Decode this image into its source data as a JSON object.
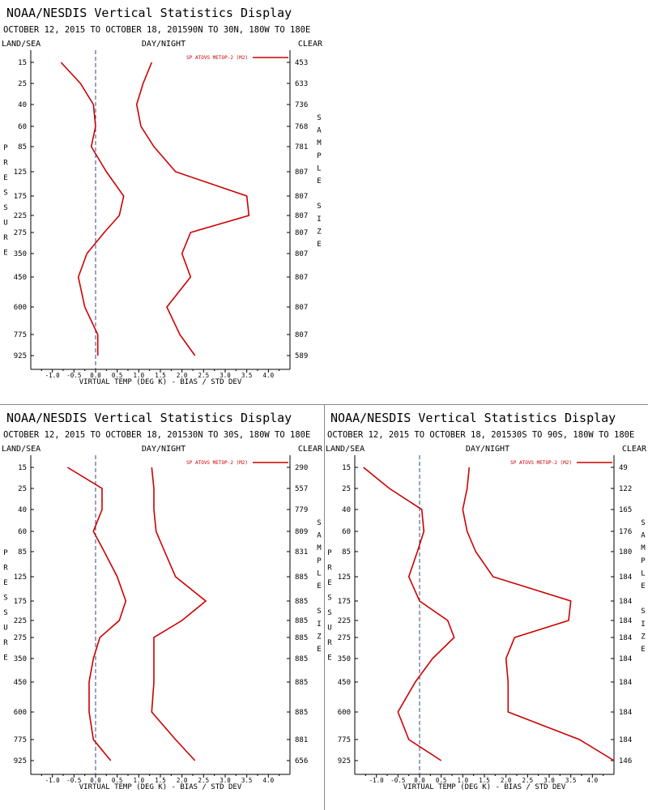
{
  "chart_data": [
    {
      "type": "line",
      "title": "NOAA/NESDIS Vertical Statistics Display",
      "subtitle": "OCTOBER 12, 2015 TO OCTOBER 18, 201590N TO 30N, 180W TO 180E",
      "top_left_label": "LAND/SEA",
      "top_center_label": "DAY/NIGHT",
      "top_right_label": "CLEAR",
      "left_axis_label": "PRESSURE",
      "right_axis_label": "SAMPLE SIZE",
      "xlabel": "VIRTUAL TEMP (DEG K) - BIAS / STD DEV",
      "xlim": [
        -1.5,
        4.5
      ],
      "xticks": [
        "-1.0",
        "-0.5",
        "0.0",
        "0.5",
        "1.0",
        "1.5",
        "2.0",
        "2.5",
        "3.0",
        "3.5",
        "4.0"
      ],
      "y": [
        "15",
        "25",
        "40",
        "60",
        "85",
        "125",
        "175",
        "225",
        "275",
        "350",
        "450",
        "600",
        "775",
        "925"
      ],
      "legend": "SP ATOVS METOP-2 (M2)",
      "sample_size": [
        "453",
        "633",
        "736",
        "768",
        "781",
        "807",
        "807",
        "807",
        "807",
        "807",
        "807",
        "807",
        "807",
        "589"
      ],
      "series": [
        {
          "values": [
            -0.8,
            -0.35,
            -0.05,
            0.0,
            -0.1,
            0.25,
            0.65,
            0.55,
            0.2,
            -0.2,
            -0.4,
            -0.25,
            0.05,
            0.05
          ]
        },
        {
          "values": [
            1.3,
            1.1,
            0.95,
            1.05,
            1.35,
            1.85,
            3.5,
            3.55,
            2.2,
            2.0,
            2.2,
            1.65,
            1.95,
            2.3
          ]
        }
      ],
      "colors": {
        "line": "#cc0000",
        "zero": "#334488"
      }
    },
    {
      "type": "line",
      "title": "NOAA/NESDIS Vertical Statistics Display",
      "subtitle": "OCTOBER 12, 2015 TO OCTOBER 18, 201530N TO 30S, 180W TO 180E",
      "top_left_label": "LAND/SEA",
      "top_center_label": "DAY/NIGHT",
      "top_right_label": "CLEAR",
      "left_axis_label": "PRESSURE",
      "right_axis_label": "SAMPLE SIZE",
      "xlabel": "VIRTUAL TEMP (DEG K) - BIAS / STD DEV",
      "xlim": [
        -1.5,
        4.5
      ],
      "xticks": [
        "-1.0",
        "-0.5",
        "0.0",
        "0.5",
        "1.0",
        "1.5",
        "2.0",
        "2.5",
        "3.0",
        "3.5",
        "4.0"
      ],
      "y": [
        "15",
        "25",
        "40",
        "60",
        "85",
        "125",
        "175",
        "225",
        "275",
        "350",
        "450",
        "600",
        "775",
        "925"
      ],
      "legend": "SP ATOVS METOP-2 (M2)",
      "sample_size": [
        "290",
        "557",
        "779",
        "809",
        "831",
        "885",
        "885",
        "885",
        "885",
        "885",
        "885",
        "885",
        "881",
        "656"
      ],
      "series": [
        {
          "values": [
            -0.65,
            0.15,
            0.15,
            -0.05,
            0.2,
            0.5,
            0.7,
            0.55,
            0.1,
            -0.05,
            -0.15,
            -0.15,
            -0.05,
            0.35
          ]
        },
        {
          "values": [
            1.3,
            1.35,
            1.35,
            1.4,
            1.6,
            1.85,
            2.55,
            2.0,
            1.35,
            1.35,
            1.35,
            1.3,
            1.85,
            2.3
          ]
        }
      ],
      "colors": {
        "line": "#cc0000",
        "zero": "#334488"
      }
    },
    {
      "type": "line",
      "title": "NOAA/NESDIS Vertical Statistics Display",
      "subtitle": "OCTOBER 12, 2015 TO OCTOBER 18, 201530S TO 90S, 180W TO 180E",
      "top_left_label": "LAND/SEA",
      "top_center_label": "DAY/NIGHT",
      "top_right_label": "CLEAR",
      "left_axis_label": "PRESSURE",
      "right_axis_label": "SAMPLE SIZE",
      "xlabel": "VIRTUAL TEMP (DEG K) - BIAS / STD DEV",
      "xlim": [
        -1.5,
        4.5
      ],
      "xticks": [
        "-1.0",
        "-0.5",
        "0.0",
        "0.5",
        "1.0",
        "1.5",
        "2.0",
        "2.5",
        "3.0",
        "3.5",
        "4.0"
      ],
      "y": [
        "15",
        "25",
        "40",
        "60",
        "85",
        "125",
        "175",
        "225",
        "275",
        "350",
        "450",
        "600",
        "775",
        "925"
      ],
      "legend": "SP ATOVS METOP-2 (M2)",
      "sample_size": [
        "49",
        "122",
        "165",
        "176",
        "180",
        "184",
        "184",
        "184",
        "184",
        "184",
        "184",
        "184",
        "184",
        "146"
      ],
      "series": [
        {
          "values": [
            -1.3,
            -0.7,
            0.05,
            0.1,
            -0.05,
            -0.25,
            0.0,
            0.65,
            0.8,
            0.3,
            -0.1,
            -0.5,
            -0.25,
            0.5
          ]
        },
        {
          "values": [
            1.15,
            1.1,
            1.0,
            1.1,
            1.3,
            1.7,
            3.5,
            3.45,
            2.2,
            2.0,
            2.05,
            2.05,
            3.7,
            4.5
          ]
        }
      ],
      "colors": {
        "line": "#cc0000",
        "zero": "#334488"
      }
    }
  ]
}
